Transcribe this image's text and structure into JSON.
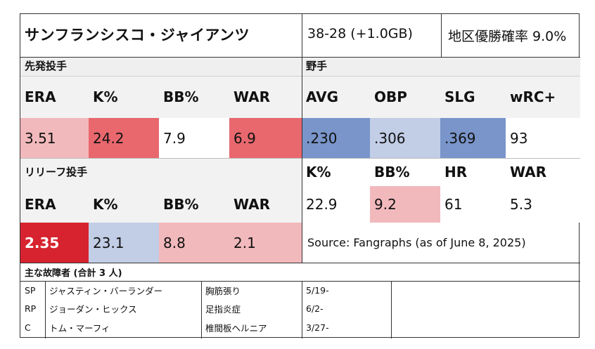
{
  "header": {
    "team": "サンフランシスコ・ジャイアンツ",
    "record": "38-28 (+1.0GB)",
    "division_odds": "地区優勝確率 9.0%"
  },
  "starters": {
    "section_label": "先発投手",
    "headers": [
      "ERA",
      "K%",
      "BB%",
      "WAR"
    ],
    "values": [
      "3.51",
      "24.2",
      "7.9",
      "6.9"
    ]
  },
  "fielders": {
    "section_label": "野手",
    "headers": [
      "AVG",
      "OBP",
      "SLG",
      "wRC+"
    ],
    "values": [
      ".230",
      ".306",
      ".369",
      "93"
    ],
    "headers2": [
      "K%",
      "BB%",
      "HR",
      "WAR"
    ],
    "values2": [
      "22.9",
      "9.2",
      "61",
      "5.3"
    ]
  },
  "relievers": {
    "section_label": "リリーフ投手",
    "headers": [
      "ERA",
      "K%",
      "BB%",
      "WAR"
    ],
    "values": [
      "2.35",
      "23.1",
      "8.8",
      "2.1"
    ]
  },
  "source": "Source: Fangraphs (as of June 8, 2025)",
  "injuries": {
    "title": "主な故障者 (合計 3 人)",
    "rows": [
      {
        "pos": "SP",
        "name": "ジャスティン・バーランダー",
        "injury": "胸筋張り",
        "date": "5/19-"
      },
      {
        "pos": "RP",
        "name": "ジョーダン・ヒックス",
        "injury": "足指炎症",
        "date": "6/2-"
      },
      {
        "pos": "C",
        "name": "トム・マーフィ",
        "injury": "椎間板ヘルニア",
        "date": "3/27-"
      }
    ]
  },
  "colors": {
    "light_red": "#f2b9bc",
    "mid_red": "#e8686e",
    "strong_red": "#d7232f",
    "light_blue": "#c2cde6",
    "mid_blue": "#7995ca",
    "header_gray": "#f2f2f2"
  }
}
